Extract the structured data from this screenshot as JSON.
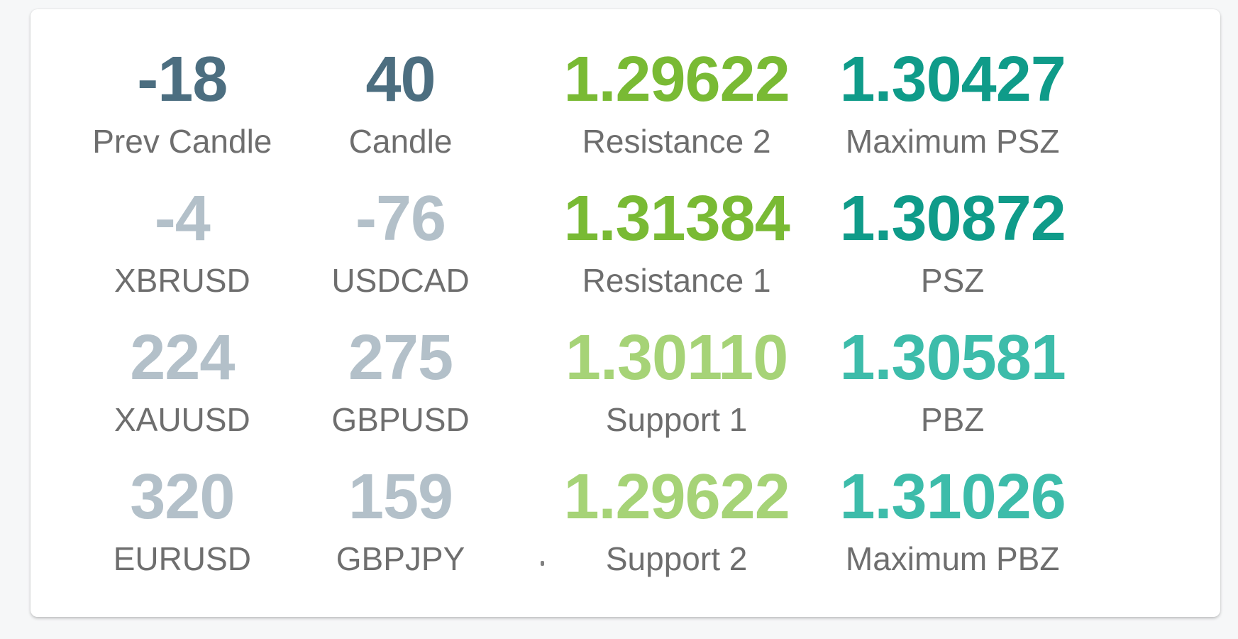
{
  "theme": {
    "page_background": "#f6f7f8",
    "card_background": "#ffffff",
    "label_color": "#6e6e6e",
    "value_colors": {
      "candle": "#4c6e80",
      "symbol": "#b3c0c9",
      "resistance": "#79ba34",
      "support": "#a6d377",
      "psz": "#0f9b89",
      "pbz": "#3dbcaa"
    }
  },
  "stats_grid": {
    "rows": [
      [
        {
          "value": "-18",
          "label": "Prev Candle",
          "color": "candle"
        },
        {
          "value": "40",
          "label": "Candle",
          "color": "candle"
        },
        {
          "value": "1.29622",
          "label": "Resistance 2",
          "color": "resistance"
        },
        {
          "value": "1.30427",
          "label": "Maximum PSZ",
          "color": "psz"
        }
      ],
      [
        {
          "value": "-4",
          "label": "XBRUSD",
          "color": "symbol"
        },
        {
          "value": "-76",
          "label": "USDCAD",
          "color": "symbol"
        },
        {
          "value": "1.31384",
          "label": "Resistance 1",
          "color": "resistance"
        },
        {
          "value": "1.30872",
          "label": "PSZ",
          "color": "psz"
        }
      ],
      [
        {
          "value": "224",
          "label": "XAUUSD",
          "color": "symbol"
        },
        {
          "value": "275",
          "label": "GBPUSD",
          "color": "symbol"
        },
        {
          "value": "1.30110",
          "label": "Support 1",
          "color": "support"
        },
        {
          "value": "1.30581",
          "label": "PBZ",
          "color": "pbz"
        }
      ],
      [
        {
          "value": "320",
          "label": "EURUSD",
          "color": "symbol"
        },
        {
          "value": "159",
          "label": "GBPJPY",
          "color": "symbol"
        },
        {
          "value": "1.29622",
          "label": "Support 2",
          "color": "support"
        },
        {
          "value": "1.31026",
          "label": "Maximum PBZ",
          "color": "pbz"
        }
      ]
    ]
  }
}
